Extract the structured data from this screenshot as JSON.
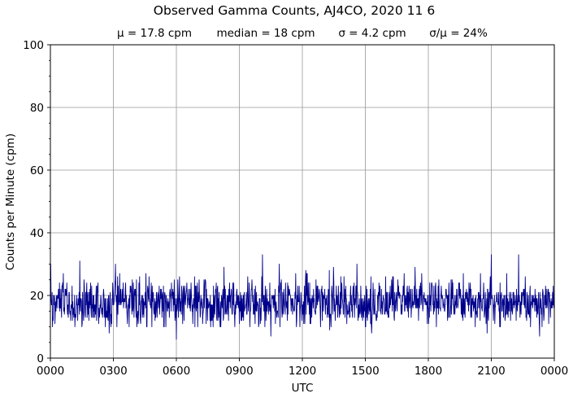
{
  "chart_data": {
    "type": "line",
    "title": "Observed Gamma Counts, AJ4CO, 2020 11 6",
    "stats": [
      "μ = 17.8 cpm",
      "median = 18 cpm",
      "σ = 4.2 cpm",
      "σ/μ = 24%"
    ],
    "xlabel": "UTC",
    "ylabel": "Counts per Minute (cpm)",
    "x_unit": "hours UTC",
    "xlim": [
      0,
      24
    ],
    "ylim": [
      0,
      100
    ],
    "x_ticks": [
      0,
      3,
      6,
      9,
      12,
      15,
      18,
      21,
      24
    ],
    "x_tick_labels": [
      "0000",
      "0300",
      "0600",
      "0900",
      "1200",
      "1500",
      "1800",
      "2100",
      "0000"
    ],
    "y_ticks": [
      0,
      20,
      40,
      60,
      80,
      100
    ],
    "y_tick_labels": [
      "0",
      "20",
      "40",
      "60",
      "80",
      "100"
    ],
    "y_minor_step": 5,
    "grid": true,
    "series": [
      {
        "color": "#00008b",
        "x_start": 0,
        "x_step_minutes": 1,
        "count": 1440,
        "mean": 17.8,
        "median": 18,
        "std": 4.2,
        "min": 6,
        "max": 33,
        "extremes": [
          {
            "x": 0.02,
            "y": 30
          },
          {
            "x": 1.4,
            "y": 31
          },
          {
            "x": 2.8,
            "y": 8
          },
          {
            "x": 3.1,
            "y": 30
          },
          {
            "x": 6.0,
            "y": 6
          },
          {
            "x": 10.1,
            "y": 33
          },
          {
            "x": 10.5,
            "y": 7
          },
          {
            "x": 10.9,
            "y": 30
          },
          {
            "x": 13.3,
            "y": 9
          },
          {
            "x": 14.6,
            "y": 30
          },
          {
            "x": 15.3,
            "y": 8
          },
          {
            "x": 20.8,
            "y": 8
          },
          {
            "x": 21.0,
            "y": 33
          },
          {
            "x": 22.3,
            "y": 33
          },
          {
            "x": 23.3,
            "y": 7
          }
        ]
      }
    ]
  }
}
